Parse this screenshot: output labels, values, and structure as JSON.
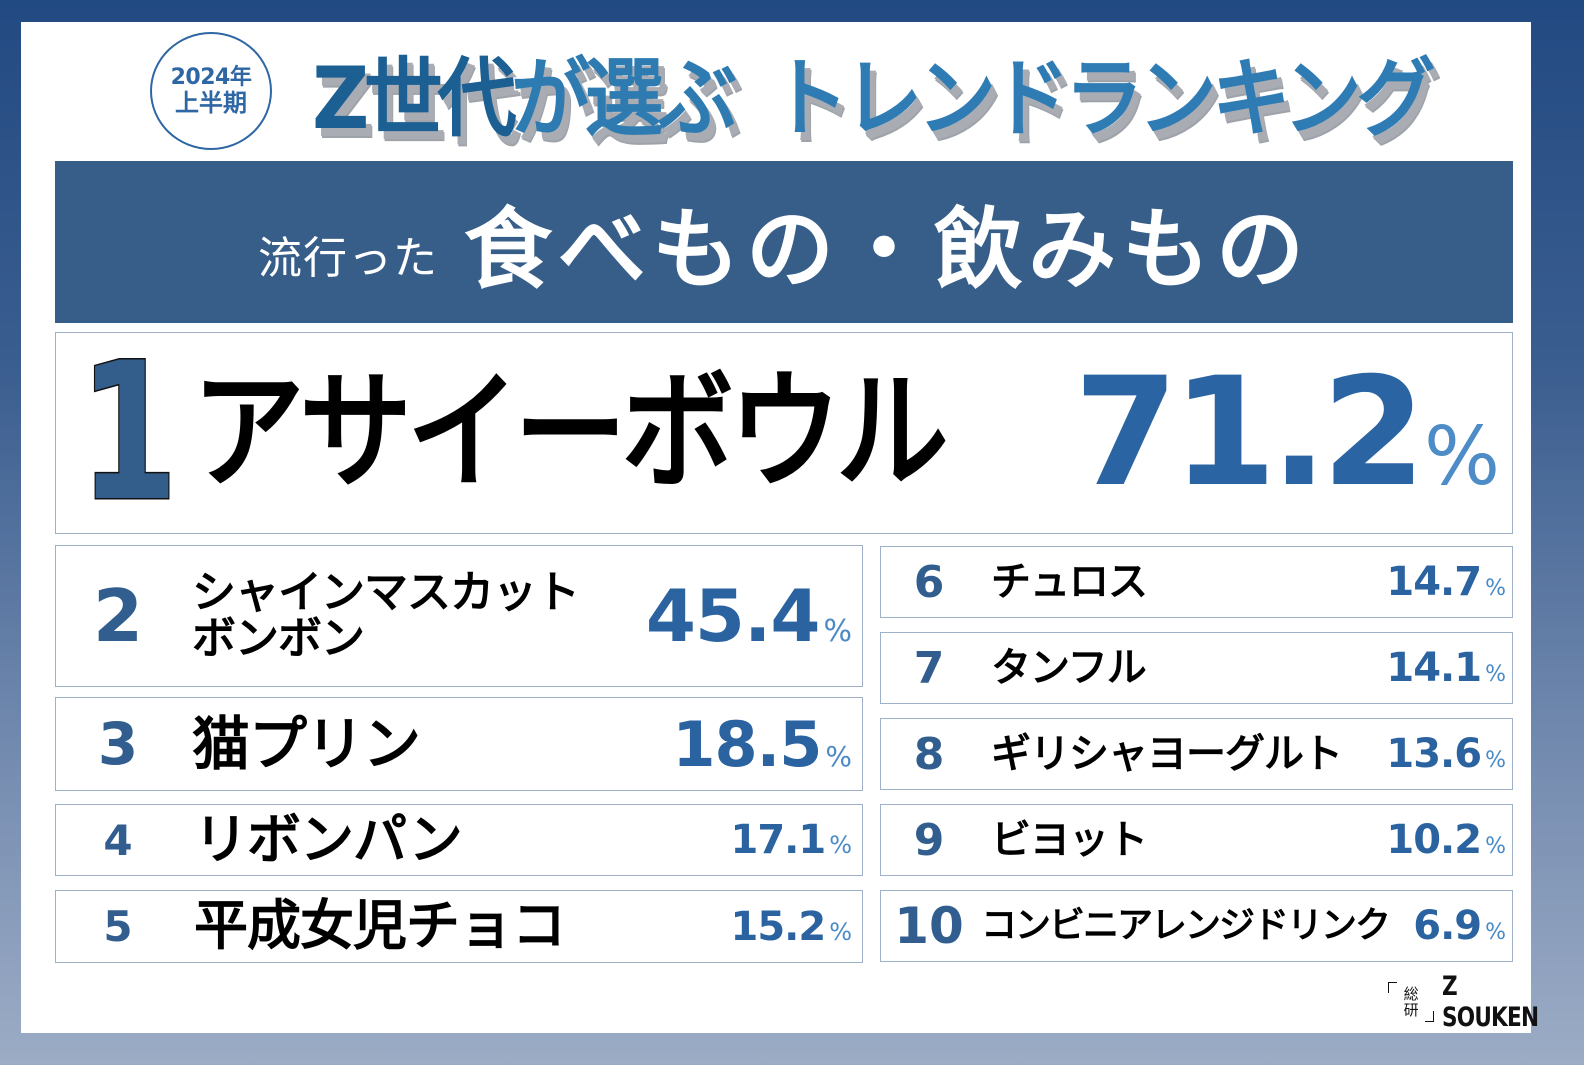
{
  "header": {
    "period_badge": {
      "year": "2024年",
      "half": "上半期"
    },
    "title_part1_prefix": "Z世代",
    "title_part1_suffix": "が選ぶ",
    "title_part2": "トレンドランキング"
  },
  "category": {
    "prefix": "流行った",
    "title": "食べもの・飲みもの"
  },
  "ranking": [
    {
      "rank": "1",
      "name": "アサイーボウル",
      "value": "71.2",
      "unit": "%"
    },
    {
      "rank": "2",
      "name_line1": "シャインマスカット",
      "name_line2": "ボンボン",
      "value": "45.4",
      "unit": "%"
    },
    {
      "rank": "3",
      "name": "猫プリン",
      "value": "18.5",
      "unit": "%"
    },
    {
      "rank": "4",
      "name": "リボンパン",
      "value": "17.1",
      "unit": "%"
    },
    {
      "rank": "5",
      "name": "平成女児チョコ",
      "value": "15.2",
      "unit": "%"
    },
    {
      "rank": "6",
      "name": "チュロス",
      "value": "14.7",
      "unit": "%"
    },
    {
      "rank": "7",
      "name": "タンフル",
      "value": "14.1",
      "unit": "%"
    },
    {
      "rank": "8",
      "name": "ギリシャヨーグルト",
      "value": "13.6",
      "unit": "%"
    },
    {
      "rank": "9",
      "name": "ビヨット",
      "value": "10.2",
      "unit": "%"
    },
    {
      "rank": "10",
      "name": "コンビニアレンジドリンク",
      "value": "6.9",
      "unit": "%"
    }
  ],
  "footer": {
    "logo_mark_top": "総",
    "logo_mark_bottom": "研",
    "logo_text": "Z SOUKEN"
  },
  "colors": {
    "banner": "#365e89",
    "rank_number": "#315e8e",
    "percent": "#2a63a0",
    "percent_unit": "#4a8ac6",
    "box_border": "#9fb1c9",
    "background_top": "#224a82",
    "background_bottom": "#9cacc5"
  }
}
